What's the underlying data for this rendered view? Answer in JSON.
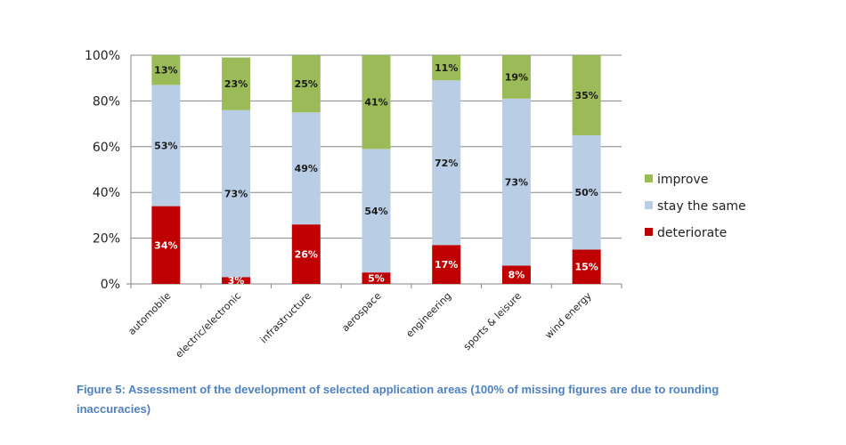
{
  "chart_data": {
    "type": "bar",
    "stacked": true,
    "title": "",
    "xlabel": "",
    "ylabel": "",
    "ylim": [
      0,
      100
    ],
    "yticks": [
      "0%",
      "20%",
      "40%",
      "60%",
      "80%",
      "100%"
    ],
    "grid": true,
    "legend_position": "right",
    "categories": [
      "automobile",
      "electric/electronic",
      "infrastructure",
      "aerospace",
      "engineering",
      "sports & leisure",
      "wind energy"
    ],
    "series": [
      {
        "name": "deteriorate",
        "color": "#c00000",
        "label_color": "#ffffff",
        "values": [
          34,
          3,
          26,
          5,
          17,
          8,
          15
        ]
      },
      {
        "name": "stay the same",
        "color": "#b9cde5",
        "label_color": "#1a1a1a",
        "values": [
          53,
          73,
          49,
          54,
          72,
          73,
          50
        ]
      },
      {
        "name": "improve",
        "color": "#9bbb59",
        "label_color": "#1a1a1a",
        "values": [
          13,
          23,
          25,
          41,
          11,
          19,
          35
        ]
      }
    ],
    "legend_order": [
      "improve",
      "stay the same",
      "deteriorate"
    ]
  },
  "caption": "Figure 5: Assessment of the development of selected application areas (100% of missing figures are due to rounding inaccuracies)"
}
